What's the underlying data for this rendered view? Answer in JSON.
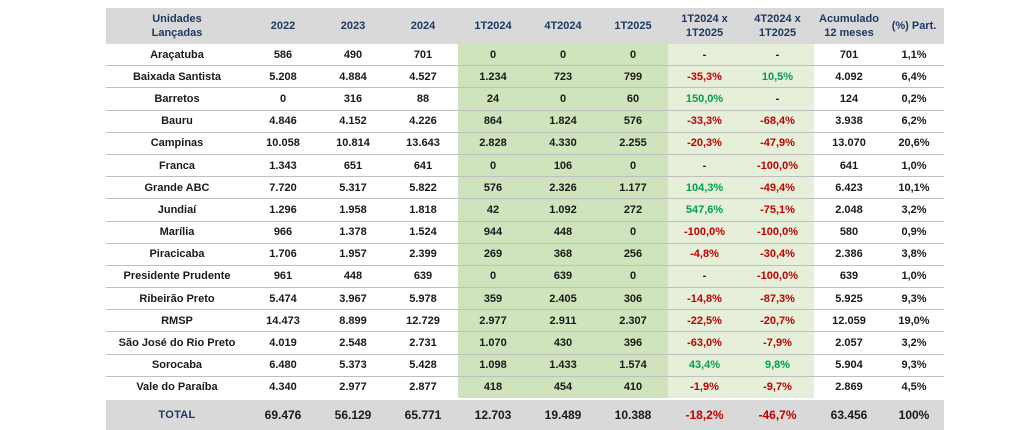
{
  "header": {
    "col0": "Unidades Lançadas",
    "col1": "2022",
    "col2": "2023",
    "col3": "2024",
    "col4": "1T2024",
    "col5": "4T2024",
    "col6": "1T2025",
    "col7": "1T2024 x 1T2025",
    "col8": "4T2024 x 1T2025",
    "col9": "Acumulado 12 meses",
    "col10": "(%) Part."
  },
  "rows": [
    {
      "name": "Araçatuba",
      "y2022": "586",
      "y2023": "490",
      "y2024": "701",
      "q1t2024": "0",
      "q4t2024": "0",
      "q1t2025": "0",
      "var1": "-",
      "var2": "-",
      "acum": "701",
      "part": "1,1%"
    },
    {
      "name": "Baixada Santista",
      "y2022": "5.208",
      "y2023": "4.884",
      "y2024": "4.527",
      "q1t2024": "1.234",
      "q4t2024": "723",
      "q1t2025": "799",
      "var1": "-35,3%",
      "var2": "10,5%",
      "acum": "4.092",
      "part": "6,4%"
    },
    {
      "name": "Barretos",
      "y2022": "0",
      "y2023": "316",
      "y2024": "88",
      "q1t2024": "24",
      "q4t2024": "0",
      "q1t2025": "60",
      "var1": "150,0%",
      "var2": "-",
      "acum": "124",
      "part": "0,2%"
    },
    {
      "name": "Bauru",
      "y2022": "4.846",
      "y2023": "4.152",
      "y2024": "4.226",
      "q1t2024": "864",
      "q4t2024": "1.824",
      "q1t2025": "576",
      "var1": "-33,3%",
      "var2": "-68,4%",
      "acum": "3.938",
      "part": "6,2%"
    },
    {
      "name": "Campinas",
      "y2022": "10.058",
      "y2023": "10.814",
      "y2024": "13.643",
      "q1t2024": "2.828",
      "q4t2024": "4.330",
      "q1t2025": "2.255",
      "var1": "-20,3%",
      "var2": "-47,9%",
      "acum": "13.070",
      "part": "20,6%"
    },
    {
      "name": "Franca",
      "y2022": "1.343",
      "y2023": "651",
      "y2024": "641",
      "q1t2024": "0",
      "q4t2024": "106",
      "q1t2025": "0",
      "var1": "-",
      "var2": "-100,0%",
      "acum": "641",
      "part": "1,0%"
    },
    {
      "name": "Grande ABC",
      "y2022": "7.720",
      "y2023": "5.317",
      "y2024": "5.822",
      "q1t2024": "576",
      "q4t2024": "2.326",
      "q1t2025": "1.177",
      "var1": "104,3%",
      "var2": "-49,4%",
      "acum": "6.423",
      "part": "10,1%"
    },
    {
      "name": "Jundiaí",
      "y2022": "1.296",
      "y2023": "1.958",
      "y2024": "1.818",
      "q1t2024": "42",
      "q4t2024": "1.092",
      "q1t2025": "272",
      "var1": "547,6%",
      "var2": "-75,1%",
      "acum": "2.048",
      "part": "3,2%"
    },
    {
      "name": "Marília",
      "y2022": "966",
      "y2023": "1.378",
      "y2024": "1.524",
      "q1t2024": "944",
      "q4t2024": "448",
      "q1t2025": "0",
      "var1": "-100,0%",
      "var2": "-100,0%",
      "acum": "580",
      "part": "0,9%"
    },
    {
      "name": "Piracicaba",
      "y2022": "1.706",
      "y2023": "1.957",
      "y2024": "2.399",
      "q1t2024": "269",
      "q4t2024": "368",
      "q1t2025": "256",
      "var1": "-4,8%",
      "var2": "-30,4%",
      "acum": "2.386",
      "part": "3,8%"
    },
    {
      "name": "Presidente Prudente",
      "y2022": "961",
      "y2023": "448",
      "y2024": "639",
      "q1t2024": "0",
      "q4t2024": "639",
      "q1t2025": "0",
      "var1": "-",
      "var2": "-100,0%",
      "acum": "639",
      "part": "1,0%"
    },
    {
      "name": "Ribeirão Preto",
      "y2022": "5.474",
      "y2023": "3.967",
      "y2024": "5.978",
      "q1t2024": "359",
      "q4t2024": "2.405",
      "q1t2025": "306",
      "var1": "-14,8%",
      "var2": "-87,3%",
      "acum": "5.925",
      "part": "9,3%"
    },
    {
      "name": "RMSP",
      "y2022": "14.473",
      "y2023": "8.899",
      "y2024": "12.729",
      "q1t2024": "2.977",
      "q4t2024": "2.911",
      "q1t2025": "2.307",
      "var1": "-22,5%",
      "var2": "-20,7%",
      "acum": "12.059",
      "part": "19,0%"
    },
    {
      "name": "São José do Rio Preto",
      "y2022": "4.019",
      "y2023": "2.548",
      "y2024": "2.731",
      "q1t2024": "1.070",
      "q4t2024": "430",
      "q1t2025": "396",
      "var1": "-63,0%",
      "var2": "-7,9%",
      "acum": "2.057",
      "part": "3,2%"
    },
    {
      "name": "Sorocaba",
      "y2022": "6.480",
      "y2023": "5.373",
      "y2024": "5.428",
      "q1t2024": "1.098",
      "q4t2024": "1.433",
      "q1t2025": "1.574",
      "var1": "43,4%",
      "var2": "9,8%",
      "acum": "5.904",
      "part": "9,3%"
    },
    {
      "name": "Vale do Paraíba",
      "y2022": "4.340",
      "y2023": "2.977",
      "y2024": "2.877",
      "q1t2024": "418",
      "q4t2024": "454",
      "q1t2025": "410",
      "var1": "-1,9%",
      "var2": "-9,7%",
      "acum": "2.869",
      "part": "4,5%"
    }
  ],
  "total": {
    "name": "TOTAL",
    "y2022": "69.476",
    "y2023": "56.129",
    "y2024": "65.771",
    "q1t2024": "12.703",
    "q4t2024": "19.489",
    "q1t2025": "10.388",
    "var1": "-18,2%",
    "var2": "-46,7%",
    "acum": "63.456",
    "part": "100%"
  },
  "colors": {
    "positive": "#00a050",
    "negative": "#c00000",
    "quarter_bg": "#cfe3bd",
    "variation_bg": "#e5efd9",
    "header_bg": "#d9d9d9",
    "header_text": "#1f3864"
  }
}
